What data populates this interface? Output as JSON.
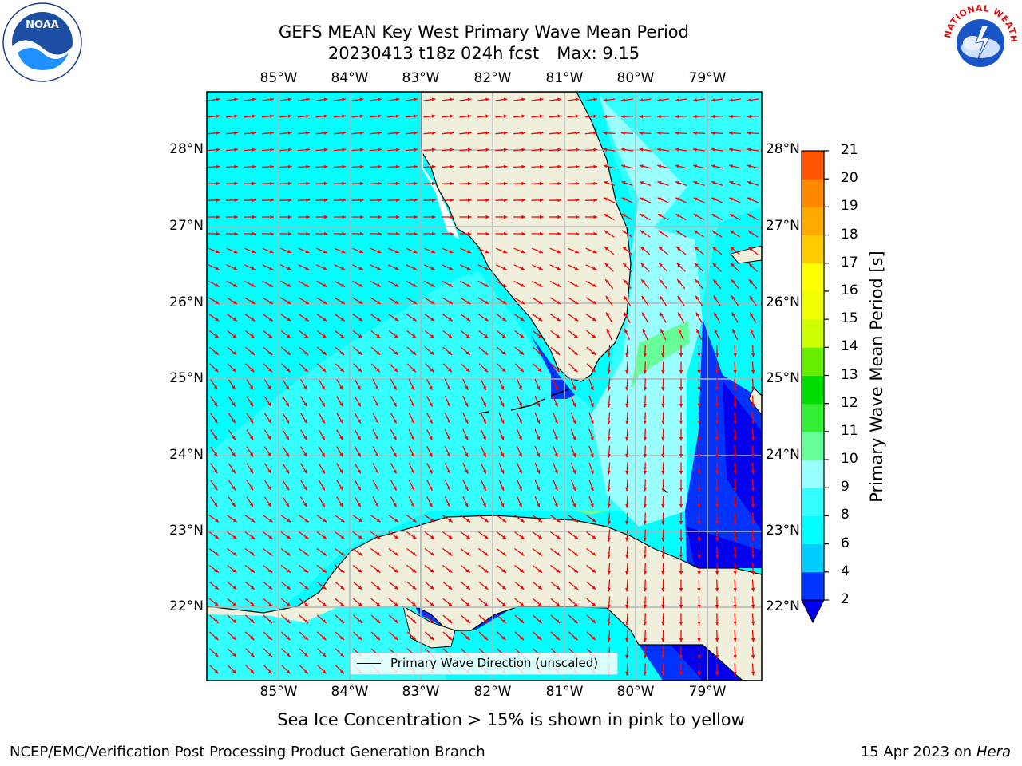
{
  "title": {
    "line1": "GEFS MEAN Key West Primary Wave Mean Period",
    "line2_run": "20230413 t18z 024h fcst",
    "line2_max": "Max: 9.15"
  },
  "map": {
    "lon_labels": [
      "85°W",
      "84°W",
      "83°W",
      "82°W",
      "81°W",
      "80°W",
      "79°W"
    ],
    "lat_labels": [
      "28°N",
      "27°N",
      "26°N",
      "25°N",
      "24°N",
      "23°N",
      "22°N"
    ],
    "legend_label": "Primary Wave Direction (unscaled)",
    "arrow_color": "#ff0000",
    "land_color": "#efefdc"
  },
  "colorbar": {
    "title": "Primary Wave Mean Period [s]",
    "ticks": [
      "2",
      "4",
      "6",
      "8",
      "9",
      "10",
      "11",
      "12",
      "13",
      "14",
      "15",
      "16",
      "17",
      "18",
      "19",
      "20",
      "21"
    ],
    "colors": [
      "#0033ff",
      "#00ccff",
      "#00ffff",
      "#33ffff",
      "#99ffff",
      "#66ff99",
      "#33ee33",
      "#00dd00",
      "#66ee00",
      "#ccff00",
      "#eeff00",
      "#ffff00",
      "#ffcc00",
      "#ffaa00",
      "#ff8800",
      "#ff5500",
      "#ff2200",
      "#ff0000"
    ],
    "under_color": "#0000ee"
  },
  "notes": {
    "sea_ice": "Sea Ice Concentration > 15% is shown in pink to yellow"
  },
  "footer": {
    "left": "NCEP/EMC/Verification Post Processing Product Generation Branch",
    "right_date": "15 Apr 2023 on",
    "right_host": "Hera"
  },
  "logos": {
    "noaa": "NOAA",
    "nws": "NATIONAL WEATHER SERVICE"
  }
}
